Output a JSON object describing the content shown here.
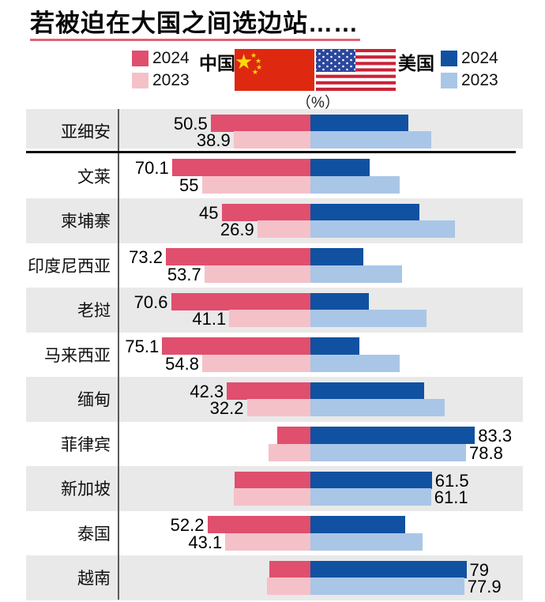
{
  "title": "若被迫在大国之间选边站……",
  "unit_label": "（%）",
  "legend": {
    "china": {
      "name": "中国",
      "year_2024": "2024",
      "year_2023": "2023"
    },
    "us": {
      "name": "美国",
      "year_2024": "2024",
      "year_2023": "2023"
    }
  },
  "colors": {
    "china_2024": "#e04f6d",
    "china_2023": "#f5c1c9",
    "us_2024": "#1151a1",
    "us_2023": "#a9c6e7",
    "row_band": "#e9e9e9",
    "title_underline": "#e06377",
    "china_flag_red": "#de2910",
    "china_flag_star": "#fcd80c",
    "us_flag_stripe": "#cc2136",
    "us_flag_canton": "#2b479e"
  },
  "chart_data": {
    "type": "bar",
    "variant": "diverging-horizontal-mirrored",
    "unit": "%",
    "note": "China share extends left of center, US share extends right; each year pair sums to 100. Printed labels appear on the majority side.",
    "series": [
      {
        "name": "中国 2024",
        "color": "#e04f6d"
      },
      {
        "name": "中国 2023",
        "color": "#f5c1c9"
      },
      {
        "name": "美国 2024",
        "color": "#1151a1"
      },
      {
        "name": "美国 2023",
        "color": "#a9c6e7"
      }
    ],
    "countries": [
      {
        "name": "亚细安",
        "china_2024": 50.5,
        "china_2023": 38.9,
        "us_2024": 49.5,
        "us_2023": 61.1,
        "label_side": "china",
        "label_2024": "50.5",
        "label_2023": "38.9"
      },
      {
        "name": "文莱",
        "china_2024": 70.1,
        "china_2023": 55.0,
        "us_2024": 29.9,
        "us_2023": 45.0,
        "label_side": "china",
        "label_2024": "70.1",
        "label_2023": "55"
      },
      {
        "name": "柬埔寨",
        "china_2024": 45.0,
        "china_2023": 26.9,
        "us_2024": 55.0,
        "us_2023": 73.1,
        "label_side": "china",
        "label_2024": "45",
        "label_2023": "26.9"
      },
      {
        "name": "印度尼西亚",
        "china_2024": 73.2,
        "china_2023": 53.7,
        "us_2024": 26.8,
        "us_2023": 46.3,
        "label_side": "china",
        "label_2024": "73.2",
        "label_2023": "53.7"
      },
      {
        "name": "老挝",
        "china_2024": 70.6,
        "china_2023": 41.1,
        "us_2024": 29.4,
        "us_2023": 58.9,
        "label_side": "china",
        "label_2024": "70.6",
        "label_2023": "41.1"
      },
      {
        "name": "马来西亚",
        "china_2024": 75.1,
        "china_2023": 54.8,
        "us_2024": 24.9,
        "us_2023": 45.2,
        "label_side": "china",
        "label_2024": "75.1",
        "label_2023": "54.8"
      },
      {
        "name": "缅甸",
        "china_2024": 42.3,
        "china_2023": 32.2,
        "us_2024": 57.7,
        "us_2023": 67.8,
        "label_side": "china",
        "label_2024": "42.3",
        "label_2023": "32.2"
      },
      {
        "name": "菲律宾",
        "china_2024": 16.7,
        "china_2023": 21.2,
        "us_2024": 83.3,
        "us_2023": 78.8,
        "label_side": "us",
        "label_2024": "83.3",
        "label_2023": "78.8"
      },
      {
        "name": "新加坡",
        "china_2024": 38.5,
        "china_2023": 38.9,
        "us_2024": 61.5,
        "us_2023": 61.1,
        "label_side": "us",
        "label_2024": "61.5",
        "label_2023": "61.1"
      },
      {
        "name": "泰国",
        "china_2024": 52.2,
        "china_2023": 43.1,
        "us_2024": 47.8,
        "us_2023": 56.9,
        "label_side": "china",
        "label_2024": "52.2",
        "label_2023": "43.1"
      },
      {
        "name": "越南",
        "china_2024": 21.0,
        "china_2023": 22.1,
        "us_2024": 79.0,
        "us_2023": 77.9,
        "label_side": "us",
        "label_2024": "79",
        "label_2023": "77.9"
      }
    ]
  }
}
